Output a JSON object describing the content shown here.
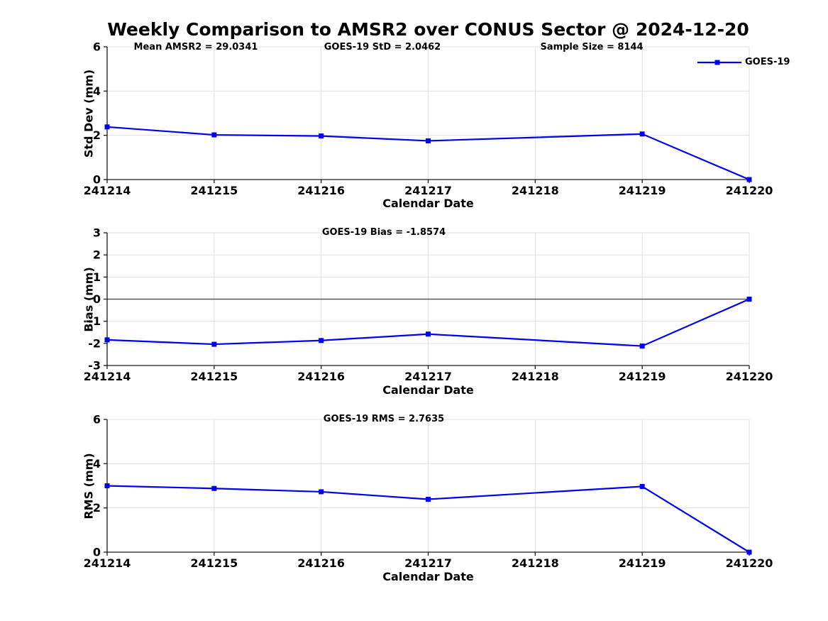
{
  "title": "Weekly Comparison to AMSR2 over CONUS Sector @ 2024-12-20",
  "legend": {
    "label": "GOES-19"
  },
  "categories": [
    "241214",
    "241215",
    "241216",
    "241217",
    "241218",
    "241219",
    "241220"
  ],
  "colors": {
    "line": "#0000ee",
    "grid": "#e0e0e0",
    "axis": "#1a1a1a",
    "zero_line": "#555555",
    "text": "#000000",
    "background": "#ffffff"
  },
  "chart_data": [
    {
      "type": "line",
      "name": "std-dev-panel",
      "annotations": [
        {
          "text": "Mean AMSR2 = 29.0341"
        },
        {
          "text": "GOES-19 StD = 2.0462"
        },
        {
          "text": "Sample Size = 8144"
        }
      ],
      "ylabel": "Std Dev (mm)",
      "xlabel": "Calendar Date",
      "ylim": [
        0,
        6
      ],
      "yticks": [
        0,
        2,
        4,
        6
      ],
      "grid": true,
      "zero_line": false,
      "legend_position": "top-right",
      "series": [
        {
          "name": "GOES-19",
          "values": [
            2.38,
            2.02,
            1.97,
            1.75,
            null,
            2.06,
            0.0
          ]
        }
      ]
    },
    {
      "type": "line",
      "name": "bias-panel",
      "annotations": [
        {
          "text": "GOES-19 Bias  = -1.8574"
        }
      ],
      "ylabel": "Bias (mm)",
      "xlabel": "Calendar Date",
      "ylim": [
        -3,
        3
      ],
      "yticks": [
        -3,
        -2,
        -1,
        0,
        1,
        2,
        3
      ],
      "grid": true,
      "zero_line": true,
      "series": [
        {
          "name": "GOES-19",
          "values": [
            -1.84,
            -2.04,
            -1.87,
            -1.58,
            null,
            -2.12,
            0.0
          ]
        }
      ]
    },
    {
      "type": "line",
      "name": "rms-panel",
      "annotations": [
        {
          "text": "GOES-19 RMS = 2.7635"
        }
      ],
      "ylabel": "RMS (mm)",
      "xlabel": "Calendar Date",
      "ylim": [
        0,
        6
      ],
      "yticks": [
        0,
        2,
        4,
        6
      ],
      "grid": true,
      "zero_line": false,
      "series": [
        {
          "name": "GOES-19",
          "values": [
            3.0,
            2.88,
            2.73,
            2.39,
            null,
            2.97,
            0.0
          ]
        }
      ]
    }
  ]
}
